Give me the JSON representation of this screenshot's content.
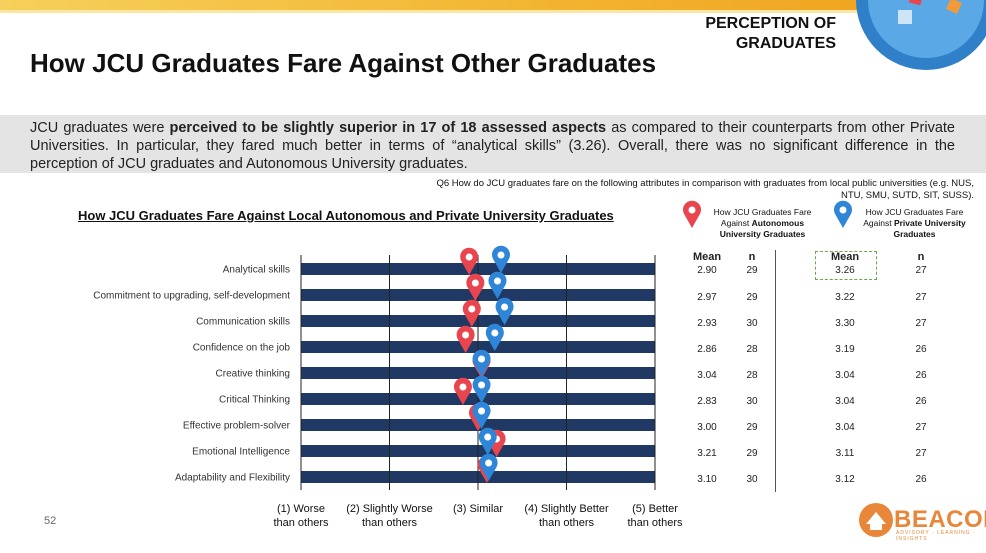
{
  "header": {
    "section_line1": "PERCEPTION OF",
    "section_line2": "GRADUATES",
    "title": "How JCU Graduates Fare Against Other Graduates"
  },
  "summary": {
    "part1": "JCU graduates were ",
    "bold": "perceived to be slightly superior in 17 of 18 assessed aspects",
    "part2": " as compared to their counterparts from other Private Universities. In particular, they fared much better in terms of “analytical skills” (3.26).  Overall, there was no significant difference in the perception of JCU graduates and Autonomous University graduates."
  },
  "question": "Q6 How do JCU graduates fare on the following attributes in comparison with graduates from local public universities (e.g. NUS, NTU, SMU, SUTD, SIT, SUSS).",
  "legend": {
    "autonomous_line1": "How JCU Graduates Fare",
    "autonomous_line2": "Against ",
    "autonomous_bold": "Autonomous",
    "autonomous_line3": "University Graduates",
    "private_line1": "How JCU Graduates Fare",
    "private_line2": "Against ",
    "private_bold": "Private University",
    "private_line3": "Graduates"
  },
  "stats": {
    "mean_label": "Mean",
    "n_label": "n"
  },
  "footer": {
    "page_number": "52",
    "logo_text": "BEACON",
    "logo_sub": "ADVISORY · LEARNING · INSIGHTS"
  },
  "chart_data": {
    "type": "dot",
    "title": "How JCU Graduates Fare Against Local Autonomous and Private University Graduates",
    "categories": [
      "Analytical skills",
      "Commitment to upgrading, self-development",
      "Communication skills",
      "Confidence on the job",
      "Creative thinking",
      "Critical Thinking",
      "Effective problem-solver",
      "Emotional Intelligence",
      "Adaptability and Flexibility"
    ],
    "xlim": [
      1,
      5
    ],
    "x_ticks": [
      {
        "value": 1,
        "line1": "(1) Worse",
        "line2": "than others"
      },
      {
        "value": 2,
        "line1": "(2) Slightly Worse",
        "line2": "than others"
      },
      {
        "value": 3,
        "line1": "(3) Similar",
        "line2": ""
      },
      {
        "value": 4,
        "line1": "(4) Slightly Better",
        "line2": "than others"
      },
      {
        "value": 5,
        "line1": "(5) Better",
        "line2": "than others"
      }
    ],
    "series": [
      {
        "name": "How JCU Graduates Fare Against Autonomous University Graduates",
        "color": "#e8454f",
        "mean": [
          2.9,
          2.97,
          2.93,
          2.86,
          3.04,
          2.83,
          3.0,
          3.21,
          3.1
        ],
        "n": [
          29,
          29,
          30,
          28,
          28,
          30,
          29,
          29,
          30
        ]
      },
      {
        "name": "How JCU Graduates Fare Against Private University Graduates",
        "color": "#2f86d8",
        "mean": [
          3.26,
          3.22,
          3.3,
          3.19,
          3.04,
          3.04,
          3.04,
          3.11,
          3.12
        ],
        "n": [
          27,
          27,
          27,
          26,
          26,
          26,
          27,
          27,
          26
        ]
      }
    ],
    "bar_color": "#1f3864"
  }
}
